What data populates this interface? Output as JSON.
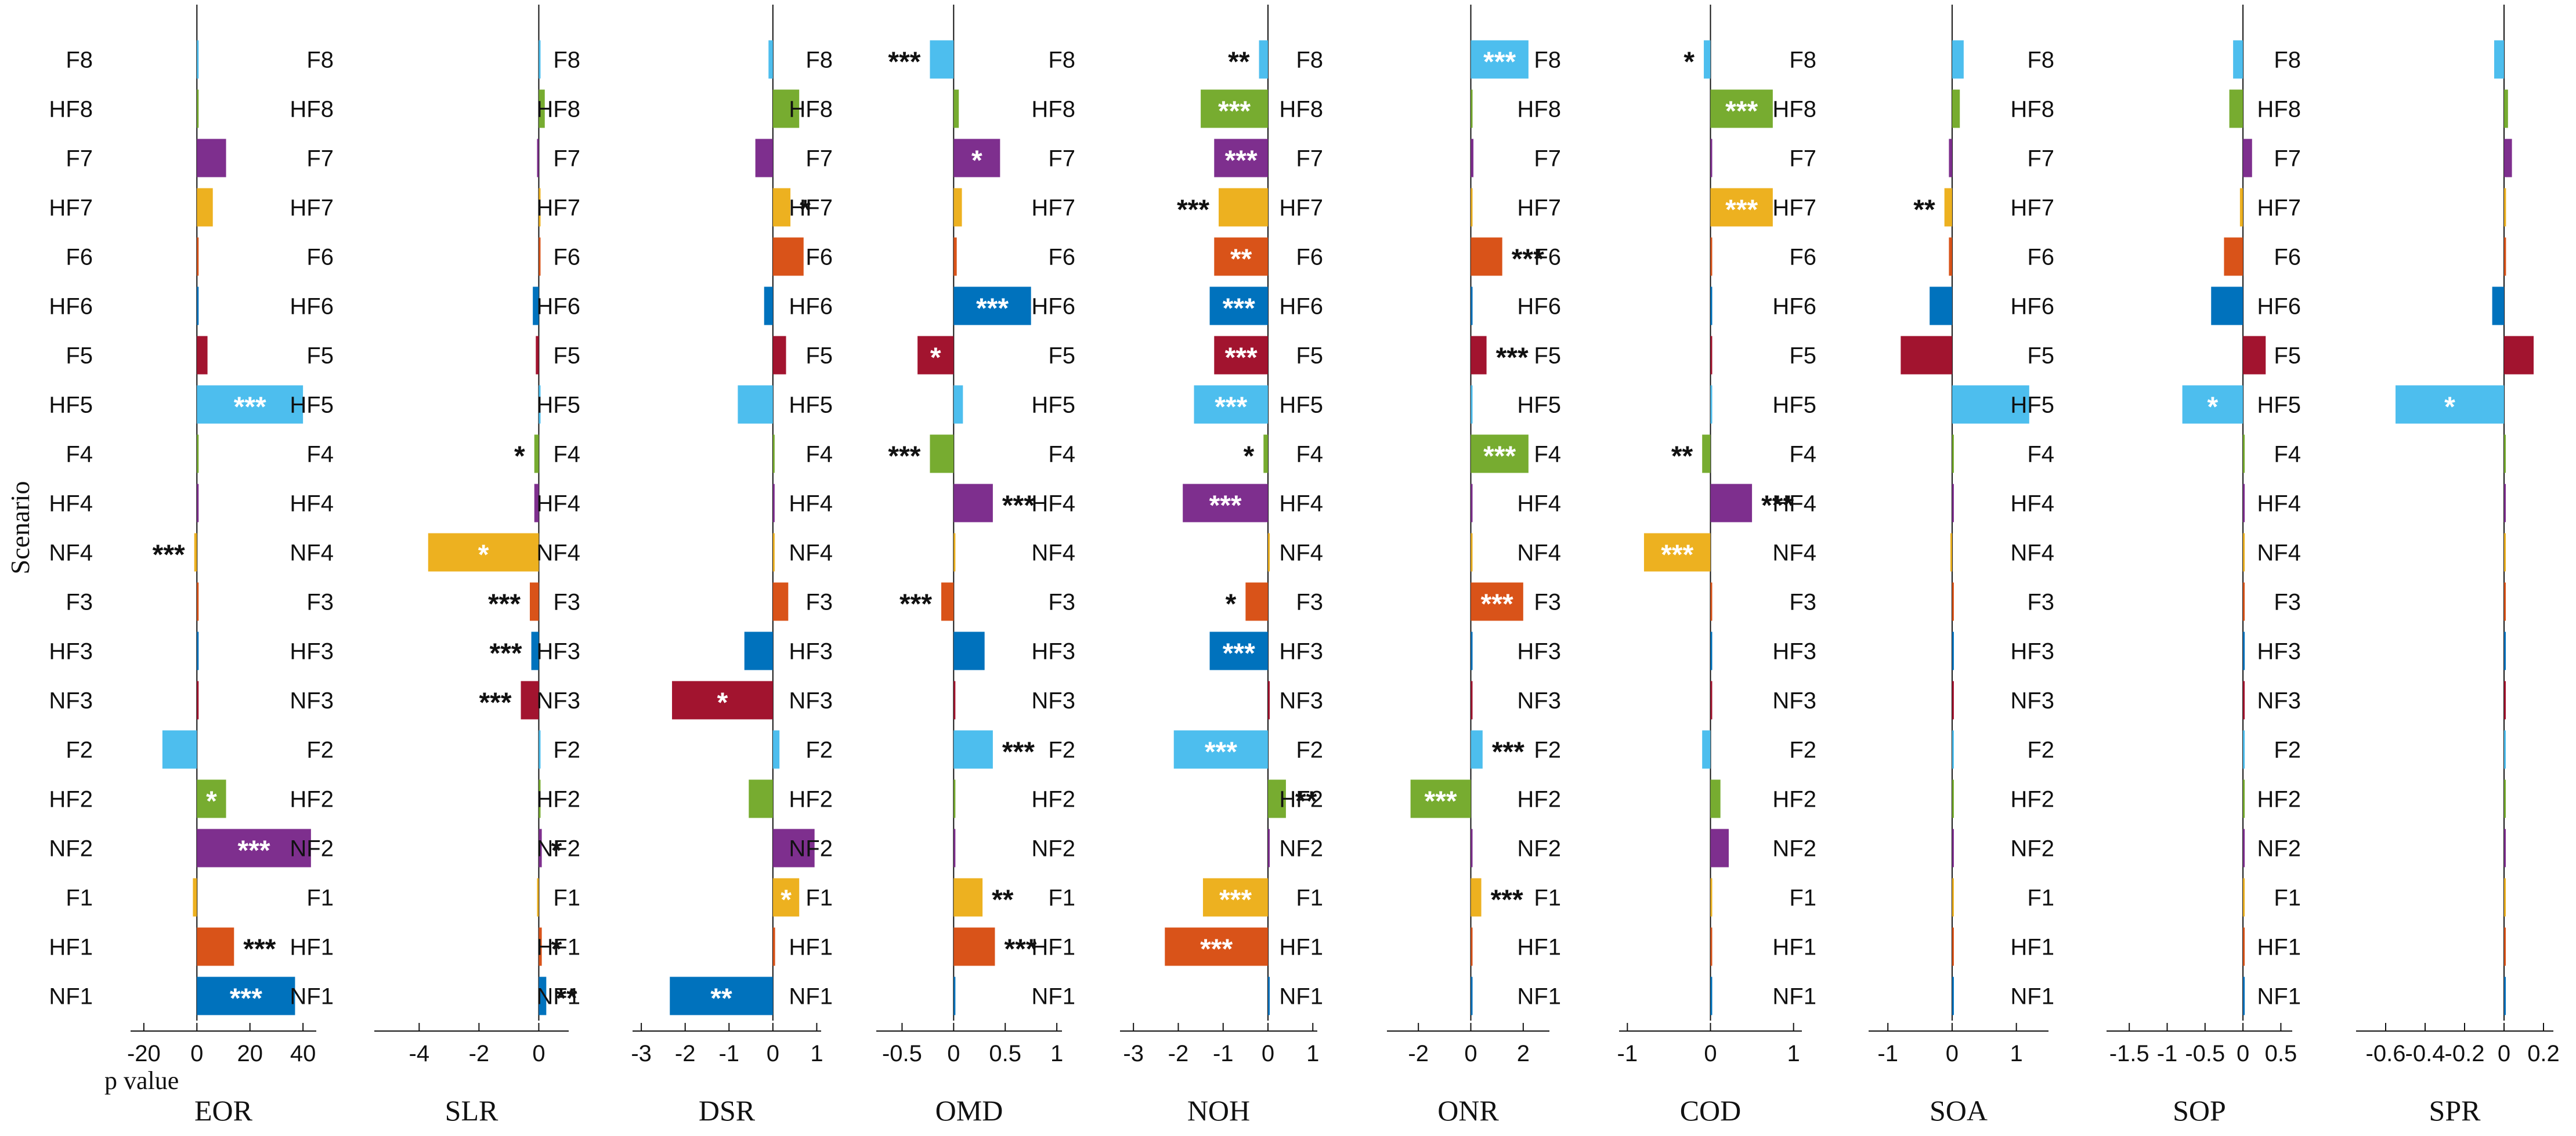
{
  "chart_data": {
    "type": "bar",
    "orientation": "horizontal",
    "y_axis_label": "Scenario",
    "x_axis_label": "p value",
    "scenarios": [
      "F8",
      "HF8",
      "F7",
      "HF7",
      "F6",
      "HF6",
      "F5",
      "HF5",
      "F4",
      "HF4",
      "NF4",
      "F3",
      "HF3",
      "NF3",
      "F2",
      "HF2",
      "NF2",
      "F1",
      "HF1",
      "NF1"
    ],
    "colors": {
      "F8": "#4dbeee",
      "HF8": "#77ac30",
      "F7": "#7e2f8e",
      "HF7": "#edb120",
      "F6": "#d95319",
      "HF6": "#0072bd",
      "F5": "#a2142f",
      "HF5": "#4dbeee",
      "F4": "#77ac30",
      "HF4": "#7e2f8e",
      "NF4": "#edb120",
      "F3": "#d95319",
      "HF3": "#0072bd",
      "NF3": "#a2142f",
      "F2": "#4dbeee",
      "HF2": "#77ac30",
      "NF2": "#7e2f8e",
      "F1": "#edb120",
      "HF1": "#d95319",
      "NF1": "#0072bd"
    },
    "panels": [
      {
        "name": "EOR",
        "xlim": [
          -25,
          45
        ],
        "ticks": [
          -20,
          0,
          20,
          40
        ],
        "tick_labels": [
          "-20",
          "0",
          "20",
          "40"
        ],
        "values": [
          0,
          0,
          11,
          6,
          0,
          0,
          4,
          40,
          0,
          0,
          -1,
          0,
          0,
          0,
          -13,
          11,
          43,
          -1.5,
          14,
          37
        ],
        "stars": [
          "",
          "",
          "",
          "",
          "",
          "",
          "",
          "***",
          "",
          "",
          "***",
          "",
          "",
          "",
          "",
          "*",
          "***",
          "",
          "***",
          "***"
        ]
      },
      {
        "name": "SLR",
        "xlim": [
          -5.5,
          1
        ],
        "ticks": [
          -4,
          -2,
          0
        ],
        "tick_labels": [
          "-4",
          "-2",
          "0"
        ],
        "values": [
          0,
          0.2,
          -0.05,
          0,
          0,
          -0.2,
          -0.1,
          0,
          -0.15,
          -0.15,
          -3.7,
          -0.3,
          -0.25,
          -0.6,
          0,
          0,
          0.1,
          -0.05,
          0.1,
          0.25
        ],
        "stars": [
          "",
          "",
          "",
          "",
          "",
          "",
          "",
          "",
          "*",
          "",
          "*",
          "***",
          "***",
          "***",
          "",
          "",
          "*",
          "",
          "*",
          "**"
        ]
      },
      {
        "name": "DSR",
        "xlim": [
          -3.2,
          1.1
        ],
        "ticks": [
          -3,
          -2,
          -1,
          0,
          1
        ],
        "tick_labels": [
          "-3",
          "-2",
          "-1",
          "0",
          "1"
        ],
        "values": [
          -0.1,
          0.6,
          -0.4,
          0.4,
          0.7,
          -0.2,
          0.3,
          -0.8,
          0,
          0,
          0,
          0.35,
          -0.65,
          -2.3,
          0.15,
          -0.55,
          0.95,
          0.6,
          0.05,
          -2.35
        ],
        "stars": [
          "",
          "",
          "",
          "*",
          "",
          "",
          "",
          "",
          "",
          "",
          "",
          "",
          "",
          "*",
          "",
          "",
          "",
          "*",
          "",
          "**"
        ]
      },
      {
        "name": "OMD",
        "xlim": [
          -0.75,
          1.05
        ],
        "ticks": [
          -0.5,
          0,
          0.5,
          1
        ],
        "tick_labels": [
          "-0.5",
          "0",
          "0.5",
          "1"
        ],
        "values": [
          -0.23,
          0.05,
          0.45,
          0.08,
          0.03,
          0.75,
          -0.35,
          0.09,
          -0.23,
          0.38,
          0,
          -0.12,
          0.3,
          0,
          0.38,
          0,
          0,
          0.28,
          0.4,
          0
        ],
        "stars": [
          "***",
          "",
          "*",
          "",
          "",
          "***",
          "*",
          "",
          "***",
          "***",
          "",
          "***",
          "",
          "",
          "***",
          "",
          "",
          "**",
          "***",
          ""
        ]
      },
      {
        "name": "NOH",
        "xlim": [
          -3.3,
          1.1
        ],
        "ticks": [
          -3,
          -2,
          -1,
          0,
          1
        ],
        "tick_labels": [
          "-3",
          "-2",
          "-1",
          "0",
          "1"
        ],
        "values": [
          -0.2,
          -1.5,
          -1.2,
          -1.1,
          -1.2,
          -1.3,
          -1.2,
          -1.65,
          -0.1,
          -1.9,
          0,
          -0.5,
          -1.3,
          0,
          -2.1,
          0.4,
          0,
          -1.45,
          -2.3,
          0
        ],
        "stars": [
          "**",
          "***",
          "***",
          "***",
          "**",
          "***",
          "***",
          "***",
          "*",
          "***",
          "",
          "*",
          "***",
          "",
          "***",
          "**",
          "",
          "***",
          "***",
          ""
        ]
      },
      {
        "name": "ONR",
        "xlim": [
          -3.2,
          3
        ],
        "ticks": [
          -2,
          0,
          2
        ],
        "tick_labels": [
          "-2",
          "0",
          "2"
        ],
        "values": [
          2.2,
          0,
          0.1,
          0,
          1.2,
          0,
          0.6,
          0,
          2.2,
          0,
          0,
          2.0,
          0,
          0,
          0.45,
          -2.3,
          0,
          0.4,
          0,
          0
        ],
        "stars": [
          "***",
          "",
          "",
          "",
          "***",
          "",
          "***",
          "",
          "***",
          "",
          "",
          "***",
          "",
          "",
          "***",
          "***",
          "",
          "***",
          "",
          ""
        ]
      },
      {
        "name": "COD",
        "xlim": [
          -1.1,
          1.1
        ],
        "ticks": [
          -1,
          0,
          1
        ],
        "tick_labels": [
          "-1",
          "0",
          "1"
        ],
        "values": [
          -0.08,
          0.75,
          0,
          0.75,
          0,
          0,
          0,
          0,
          -0.1,
          0.5,
          -0.8,
          0,
          0,
          0,
          -0.1,
          0.12,
          0.22,
          0,
          0,
          0
        ],
        "stars": [
          "*",
          "***",
          "",
          "***",
          "",
          "",
          "",
          "",
          "**",
          "***",
          "***",
          "",
          "",
          "",
          "",
          "",
          "",
          "",
          "",
          ""
        ]
      },
      {
        "name": "SOA",
        "xlim": [
          -1.3,
          1.5
        ],
        "ticks": [
          -1,
          0,
          1
        ],
        "tick_labels": [
          "-1",
          "0",
          "1"
        ],
        "values": [
          0.18,
          0.12,
          -0.05,
          -0.12,
          -0.05,
          -0.35,
          -0.8,
          1.2,
          0,
          0,
          -0.02,
          0,
          0,
          0,
          0,
          0,
          0,
          0,
          0,
          0
        ],
        "stars": [
          "",
          "",
          "",
          "**",
          "",
          "",
          "",
          "",
          "",
          "",
          "",
          "",
          "",
          "",
          "",
          "",
          "",
          "",
          "",
          ""
        ]
      },
      {
        "name": "SOP",
        "xlim": [
          -1.8,
          0.65
        ],
        "ticks": [
          -1.5,
          -1,
          -0.5,
          0,
          0.5
        ],
        "tick_labels": [
          "-1.5",
          "-1",
          "-0.5",
          "0",
          "0.5"
        ],
        "values": [
          -0.13,
          -0.18,
          0.12,
          -0.04,
          -0.25,
          -0.42,
          0.3,
          -0.8,
          0,
          0,
          0,
          0,
          0,
          0,
          0,
          0,
          0,
          0,
          0,
          0
        ],
        "stars": [
          "",
          "",
          "",
          "",
          "",
          "",
          "",
          "*",
          "",
          "",
          "",
          "",
          "",
          "",
          "",
          "",
          "",
          "",
          "",
          ""
        ]
      },
      {
        "name": "SPR",
        "xlim": [
          -0.75,
          0.25
        ],
        "ticks": [
          -0.6,
          -0.4,
          -0.2,
          0,
          0.2
        ],
        "tick_labels": [
          "-0.6",
          "-0.4",
          "-0.2",
          "0",
          "0.2"
        ],
        "values": [
          -0.05,
          0.02,
          0.04,
          0.01,
          0.01,
          -0.06,
          0.15,
          -0.55,
          0,
          0,
          0,
          0,
          0,
          0,
          0,
          0,
          0,
          0,
          0,
          0
        ],
        "stars": [
          "",
          "",
          "",
          "",
          "",
          "",
          "",
          "*",
          "",
          "",
          "",
          "",
          "",
          "",
          "",
          "",
          "",
          "",
          "",
          ""
        ]
      }
    ]
  }
}
